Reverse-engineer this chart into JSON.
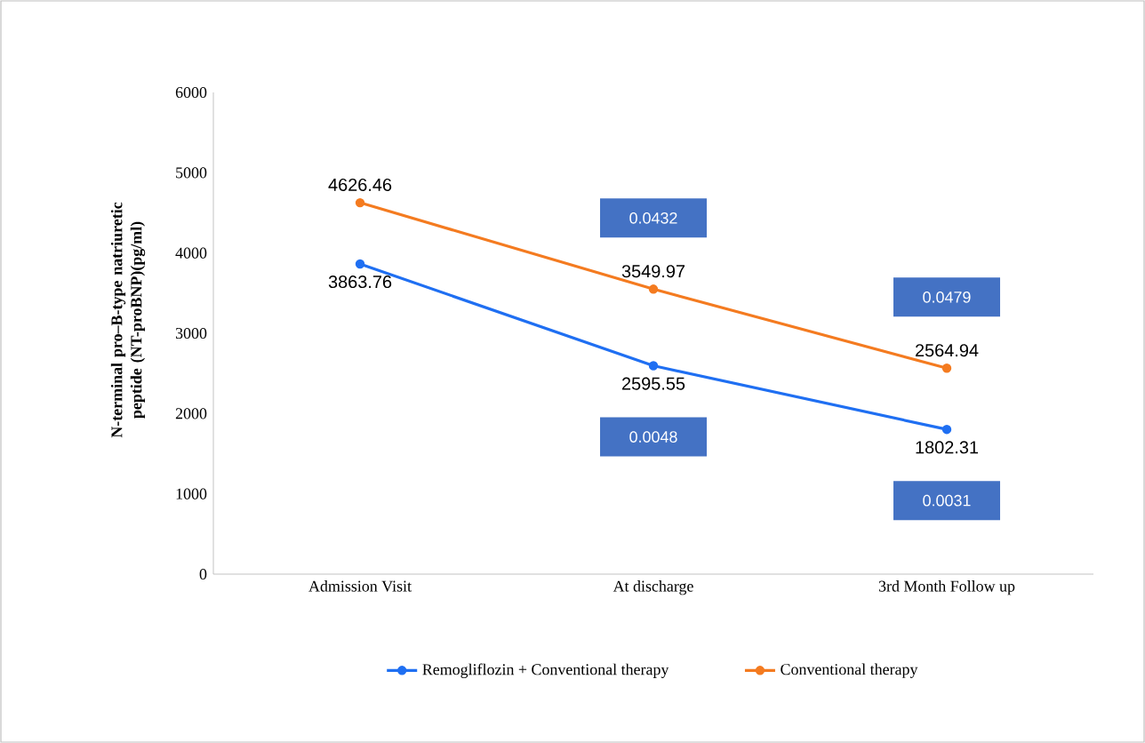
{
  "chart_data": {
    "type": "line",
    "ylabel": "N-terminal pro–B-type natriuretic peptide (NT-proBNP)(pg/ml)",
    "categories": [
      "Admission Visit",
      "At discharge",
      "3rd Month Follow up"
    ],
    "series": [
      {
        "name": "Remogliflozin + Conventional therapy",
        "color": "#1f6ff2",
        "values": [
          3863.76,
          2595.55,
          1802.31
        ]
      },
      {
        "name": "Conventional therapy",
        "color": "#f47b20",
        "values": [
          4626.46,
          3549.97,
          2564.94
        ]
      }
    ],
    "ylim": [
      0,
      6000
    ],
    "yticks": [
      0,
      1000,
      2000,
      3000,
      4000,
      5000,
      6000
    ],
    "data_labels": true,
    "marker": "circle",
    "legend": "bottom",
    "grid": false,
    "annotations": [
      "0.0432",
      "0.0048",
      "0.0479",
      "0.0031"
    ]
  }
}
